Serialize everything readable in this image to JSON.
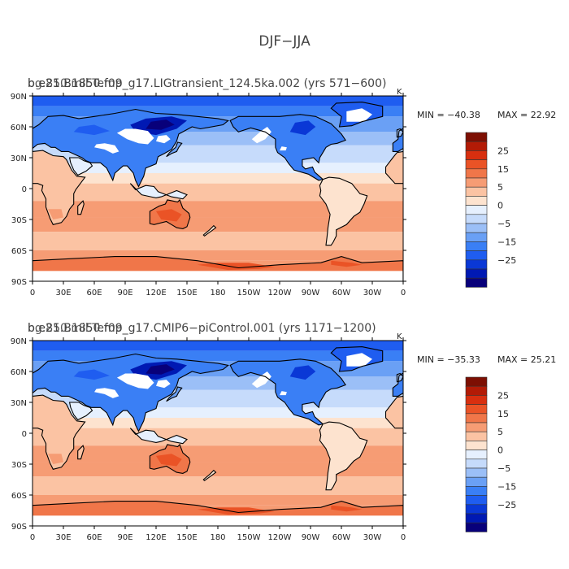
{
  "figure_title": "DJF−JJA",
  "colors": {
    "levels": [
      "#08007a",
      "#0019b3",
      "#0a38d6",
      "#1f5df0",
      "#3a7ff5",
      "#6aa0f5",
      "#9bbff7",
      "#c6dbfb",
      "#e6f0fe",
      "#fde3cf",
      "#fbc3a3",
      "#f69c74",
      "#f07649",
      "#ea5326",
      "#d82f0f",
      "#b31b06",
      "#7d0f03"
    ],
    "land_missing": "#ffffff",
    "coast": "#000000"
  },
  "chart_data": [
    {
      "type": "heatmap",
      "title": "b.e21.B1850.f09_g17.LIGtransient_124.5ka.002 (yrs 571−600)",
      "subtitle_overlay": "bg.850.mil.Temp",
      "corner_label": "K",
      "variable": "DJF−JJA",
      "min_label": "MIN = −40.38",
      "max_label": "MAX =  22.92",
      "min": -40.38,
      "max": 22.92,
      "x_ticks": [
        "0",
        "30E",
        "60E",
        "90E",
        "120E",
        "150E",
        "180",
        "150W",
        "120W",
        "90W",
        "60W",
        "30W",
        "0"
      ],
      "y_ticks": [
        "90N",
        "60N",
        "30N",
        "0",
        "30S",
        "60S",
        "90S"
      ],
      "xlim": [
        0,
        360
      ],
      "ylim": [
        -90,
        90
      ],
      "colorbar_labels": [
        "25",
        "15",
        "5",
        "0",
        "−5",
        "−15",
        "−25"
      ],
      "colorbar_levels": [
        30,
        25,
        20,
        15,
        10,
        5,
        2,
        0,
        -2,
        -5,
        -10,
        -15,
        -20,
        -25,
        -30
      ]
    },
    {
      "type": "heatmap",
      "title": "b.e21.B1850.f09_g17.CMIP6−piControl.001 (yrs 1171−1200)",
      "subtitle_overlay": "bg.850.mil.Temp",
      "corner_label": "K",
      "variable": "DJF−JJA",
      "min_label": "MIN = −35.33",
      "max_label": "MAX =  25.21",
      "min": -35.33,
      "max": 25.21,
      "x_ticks": [
        "0",
        "30E",
        "60E",
        "90E",
        "120E",
        "150E",
        "180",
        "150W",
        "120W",
        "90W",
        "60W",
        "30W",
        "0"
      ],
      "y_ticks": [
        "90N",
        "60N",
        "30N",
        "0",
        "30S",
        "60S",
        "90S"
      ],
      "xlim": [
        0,
        360
      ],
      "ylim": [
        -90,
        90
      ],
      "colorbar_labels": [
        "25",
        "15",
        "5",
        "0",
        "−5",
        "−15",
        "−25"
      ],
      "colorbar_levels": [
        30,
        25,
        20,
        15,
        10,
        5,
        2,
        0,
        -2,
        -5,
        -10,
        -15,
        -20,
        -25,
        -30
      ]
    }
  ]
}
